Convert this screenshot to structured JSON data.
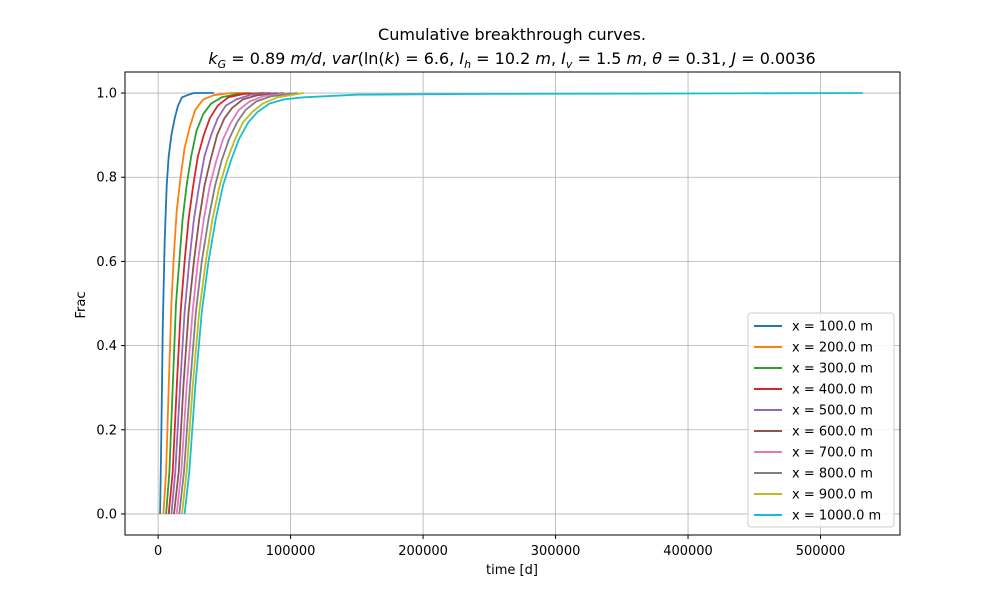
{
  "chart_data": {
    "type": "line",
    "title": "Cumulative breakthrough curves.",
    "subtitle": "k_G = 0.89 m/d, var(ln(k) = 6.6, I_h = 10.2 m, I_v = 1.5 m, θ = 0.31, J = 0.0036",
    "xlabel": "time [d]",
    "ylabel": "Frac",
    "xlim": [
      -25000,
      560000
    ],
    "ylim": [
      -0.05,
      1.05
    ],
    "xticks": [
      0,
      100000,
      200000,
      300000,
      400000,
      500000
    ],
    "yticks": [
      0.0,
      0.2,
      0.4,
      0.6,
      0.8,
      1.0
    ],
    "ytick_labels": [
      "0.0",
      "0.2",
      "0.4",
      "0.6",
      "0.8",
      "1.0"
    ],
    "grid": true,
    "legend_position": "lower-right",
    "series": [
      {
        "name": "x = 100.0 m",
        "color": "#1f77b4",
        "x": [
          1500,
          2500,
          3500,
          5000,
          6500,
          8000,
          10000,
          12500,
          15000,
          18000,
          22000,
          27000,
          35000,
          42000
        ],
        "y": [
          0.0,
          0.2,
          0.45,
          0.65,
          0.78,
          0.85,
          0.9,
          0.94,
          0.97,
          0.99,
          0.995,
          1.0,
          1.0,
          1.0
        ]
      },
      {
        "name": "x = 200.0 m",
        "color": "#ff7f0e",
        "x": [
          4000,
          6000,
          8000,
          10000,
          12000,
          14000,
          17000,
          20000,
          24000,
          28000,
          34000,
          42000,
          55000,
          70000
        ],
        "y": [
          0.0,
          0.1,
          0.3,
          0.5,
          0.62,
          0.72,
          0.8,
          0.87,
          0.92,
          0.96,
          0.985,
          0.995,
          1.0,
          1.0
        ]
      },
      {
        "name": "x = 300.0 m",
        "color": "#2ca02c",
        "x": [
          6000,
          8500,
          11000,
          13500,
          16000,
          18500,
          21500,
          25000,
          29000,
          34000,
          40000,
          48000,
          60000,
          80000
        ],
        "y": [
          0.0,
          0.1,
          0.3,
          0.5,
          0.6,
          0.7,
          0.78,
          0.85,
          0.91,
          0.95,
          0.975,
          0.99,
          0.998,
          1.0
        ]
      },
      {
        "name": "x = 400.0 m",
        "color": "#d62728",
        "x": [
          8000,
          11000,
          14000,
          17000,
          20000,
          23000,
          26500,
          30000,
          34500,
          39000,
          45000,
          53000,
          65000,
          85000
        ],
        "y": [
          0.0,
          0.1,
          0.3,
          0.48,
          0.6,
          0.7,
          0.78,
          0.85,
          0.9,
          0.94,
          0.97,
          0.99,
          0.998,
          1.0
        ]
      },
      {
        "name": "x = 500.0 m",
        "color": "#9467bd",
        "x": [
          10000,
          13000,
          16500,
          20000,
          23500,
          27000,
          31000,
          35000,
          40000,
          45000,
          51000,
          59000,
          70000,
          90000
        ],
        "y": [
          0.0,
          0.1,
          0.3,
          0.48,
          0.6,
          0.7,
          0.78,
          0.85,
          0.9,
          0.94,
          0.97,
          0.985,
          0.996,
          1.0
        ]
      },
      {
        "name": "x = 600.0 m",
        "color": "#8c564b",
        "x": [
          12000,
          15500,
          19000,
          23000,
          27000,
          31000,
          35000,
          39500,
          44500,
          50000,
          56000,
          64000,
          75000,
          95000
        ],
        "y": [
          0.0,
          0.1,
          0.3,
          0.48,
          0.6,
          0.7,
          0.78,
          0.84,
          0.9,
          0.94,
          0.965,
          0.985,
          0.995,
          1.0
        ]
      },
      {
        "name": "x = 700.0 m",
        "color": "#e377c2",
        "x": [
          14000,
          17500,
          21500,
          26000,
          30000,
          34500,
          39000,
          44000,
          49000,
          55000,
          61000,
          69000,
          80000,
          100000
        ],
        "y": [
          0.0,
          0.1,
          0.3,
          0.48,
          0.6,
          0.7,
          0.78,
          0.84,
          0.89,
          0.93,
          0.96,
          0.98,
          0.993,
          1.0
        ]
      },
      {
        "name": "x = 800.0 m",
        "color": "#7f7f7f",
        "x": [
          16000,
          19500,
          24000,
          28500,
          33000,
          38000,
          43000,
          48000,
          53500,
          59500,
          66000,
          74000,
          85000,
          105000
        ],
        "y": [
          0.0,
          0.1,
          0.3,
          0.48,
          0.6,
          0.7,
          0.78,
          0.84,
          0.89,
          0.93,
          0.96,
          0.98,
          0.992,
          1.0
        ]
      },
      {
        "name": "x = 900.0 m",
        "color": "#bcbd22",
        "x": [
          18000,
          21500,
          26000,
          31000,
          36000,
          41000,
          46500,
          52000,
          58000,
          64000,
          71000,
          79000,
          90000,
          110000
        ],
        "y": [
          0.0,
          0.1,
          0.3,
          0.48,
          0.6,
          0.7,
          0.78,
          0.84,
          0.89,
          0.93,
          0.955,
          0.975,
          0.99,
          1.0
        ]
      },
      {
        "name": "x = 1000.0 m",
        "color": "#17becf",
        "x": [
          20000,
          23500,
          28000,
          33000,
          38000,
          43500,
          49000,
          55000,
          61000,
          68000,
          75000,
          84000,
          95000,
          110000,
          150000,
          250000,
          400000,
          532000
        ],
        "y": [
          0.0,
          0.1,
          0.3,
          0.48,
          0.6,
          0.7,
          0.78,
          0.84,
          0.89,
          0.93,
          0.955,
          0.975,
          0.985,
          0.99,
          0.996,
          0.998,
          0.999,
          1.0
        ]
      }
    ]
  }
}
